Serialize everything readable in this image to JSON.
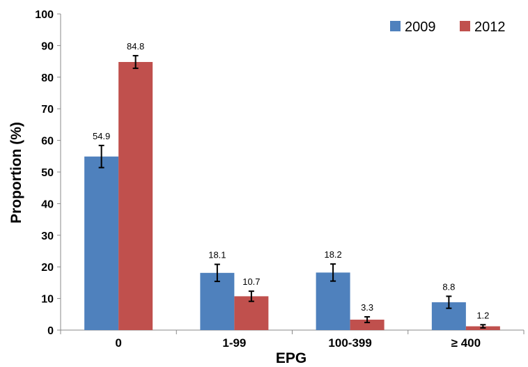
{
  "chart_data": {
    "type": "bar",
    "title": "",
    "xlabel": "EPG",
    "ylabel": "Proportion (%)",
    "categories": [
      "0",
      "1-99",
      "100-399",
      "≥ 400"
    ],
    "series": [
      {
        "name": "2009",
        "color": "#4F81BD",
        "values": [
          54.9,
          18.1,
          18.2,
          8.8
        ],
        "labels": [
          "54.9",
          "18.1",
          "18.2",
          "8.8"
        ],
        "error_bars": [
          3.5,
          2.7,
          2.7,
          1.9
        ]
      },
      {
        "name": "2012",
        "color": "#C0504D",
        "values": [
          84.8,
          10.7,
          3.3,
          1.2
        ],
        "labels": [
          "84.8",
          "10.7",
          "3.3",
          "1.2"
        ],
        "error_bars": [
          2.0,
          1.6,
          0.9,
          0.5
        ]
      }
    ],
    "ylim": [
      0,
      100
    ],
    "yticks": [
      "0",
      "10",
      "20",
      "30",
      "40",
      "50",
      "60",
      "70",
      "80",
      "90",
      "100"
    ],
    "grid": false,
    "legend_position": "top-right"
  }
}
